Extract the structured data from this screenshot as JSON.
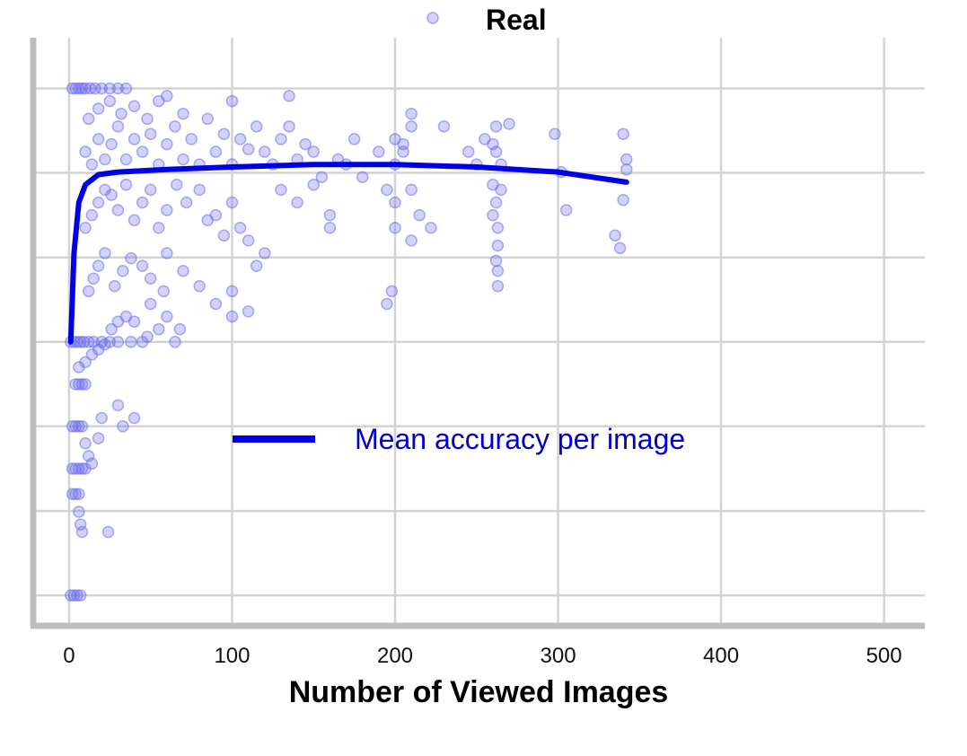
{
  "colors": {
    "points": "#6b6bef",
    "mean_line": "#0000e6",
    "grid": "#d3d3d3",
    "axis": "#bdbdbd",
    "annotation_text": "#0000cc"
  },
  "chart_data": {
    "type": "scatter",
    "title": "",
    "xlabel": "Number of Viewed Images",
    "ylabel": "",
    "xlim": [
      -22,
      525
    ],
    "ylim": [
      -0.12,
      2.2
    ],
    "x_ticks": [
      0,
      100,
      200,
      300,
      400,
      500
    ],
    "y_ticks": [
      0,
      0.333,
      0.667,
      1.0,
      1.333,
      1.667,
      2.0
    ],
    "grid": true,
    "legend": {
      "placement": "top-center",
      "entries": [
        {
          "label": "Real",
          "marker": "circle"
        }
      ]
    },
    "annotation": {
      "text": "Mean accuracy per image",
      "position": "center"
    },
    "series": [
      {
        "name": "Real",
        "type": "scatter",
        "points": [
          [
            2,
            2.0
          ],
          [
            4,
            2.0
          ],
          [
            6,
            2.0
          ],
          [
            8,
            2.0
          ],
          [
            10,
            2.0
          ],
          [
            13,
            2.0
          ],
          [
            16,
            2.0
          ],
          [
            20,
            2.0
          ],
          [
            25,
            2.0
          ],
          [
            30,
            2.0
          ],
          [
            35,
            2.0
          ],
          [
            1,
            1.0
          ],
          [
            3,
            1.0
          ],
          [
            5,
            1.0
          ],
          [
            7,
            1.0
          ],
          [
            9,
            1.0
          ],
          [
            12,
            1.0
          ],
          [
            15,
            1.0
          ],
          [
            20,
            1.0
          ],
          [
            25,
            1.0
          ],
          [
            30,
            1.0
          ],
          [
            38,
            1.0
          ],
          [
            45,
            1.0
          ],
          [
            1,
            0.0
          ],
          [
            3,
            0.0
          ],
          [
            5,
            0.0
          ],
          [
            7,
            0.0
          ],
          [
            2,
            0.667
          ],
          [
            4,
            0.667
          ],
          [
            6,
            0.667
          ],
          [
            8,
            0.667
          ],
          [
            2,
            0.5
          ],
          [
            4,
            0.5
          ],
          [
            6,
            0.5
          ],
          [
            8,
            0.5
          ],
          [
            10,
            0.5
          ],
          [
            2,
            0.4
          ],
          [
            4,
            0.4
          ],
          [
            6,
            0.4
          ],
          [
            4,
            0.833
          ],
          [
            6,
            0.833
          ],
          [
            8,
            0.833
          ],
          [
            10,
            0.833
          ],
          [
            6,
            0.33
          ],
          [
            7,
            0.28
          ],
          [
            8,
            0.25
          ],
          [
            24,
            0.25
          ],
          [
            10,
            0.6
          ],
          [
            12,
            0.55
          ],
          [
            14,
            0.52
          ],
          [
            18,
            0.62
          ],
          [
            20,
            0.7
          ],
          [
            30,
            0.75
          ],
          [
            40,
            0.7
          ],
          [
            33,
            0.667
          ],
          [
            6,
            0.9
          ],
          [
            10,
            0.92
          ],
          [
            14,
            0.95
          ],
          [
            18,
            0.97
          ],
          [
            22,
            0.99
          ],
          [
            26,
            1.05
          ],
          [
            30,
            1.08
          ],
          [
            35,
            1.1
          ],
          [
            40,
            1.08
          ],
          [
            50,
            1.15
          ],
          [
            48,
            1.02
          ],
          [
            55,
            1.05
          ],
          [
            60,
            1.1
          ],
          [
            65,
            1.0
          ],
          [
            68,
            1.05
          ],
          [
            12,
            1.2
          ],
          [
            15,
            1.25
          ],
          [
            18,
            1.3
          ],
          [
            22,
            1.35
          ],
          [
            28,
            1.22
          ],
          [
            33,
            1.28
          ],
          [
            38,
            1.33
          ],
          [
            45,
            1.3
          ],
          [
            50,
            1.25
          ],
          [
            58,
            1.2
          ],
          [
            60,
            1.35
          ],
          [
            70,
            1.28
          ],
          [
            80,
            1.22
          ],
          [
            90,
            1.15
          ],
          [
            100,
            1.2
          ],
          [
            110,
            1.12
          ],
          [
            100,
            1.1
          ],
          [
            115,
            1.3
          ],
          [
            10,
            1.45
          ],
          [
            14,
            1.5
          ],
          [
            18,
            1.55
          ],
          [
            22,
            1.6
          ],
          [
            26,
            1.58
          ],
          [
            30,
            1.52
          ],
          [
            35,
            1.62
          ],
          [
            40,
            1.48
          ],
          [
            45,
            1.55
          ],
          [
            50,
            1.6
          ],
          [
            55,
            1.45
          ],
          [
            60,
            1.52
          ],
          [
            66,
            1.62
          ],
          [
            72,
            1.55
          ],
          [
            80,
            1.6
          ],
          [
            85,
            1.48
          ],
          [
            90,
            1.5
          ],
          [
            95,
            1.42
          ],
          [
            100,
            1.55
          ],
          [
            105,
            1.45
          ],
          [
            110,
            1.4
          ],
          [
            120,
            1.35
          ],
          [
            10,
            1.75
          ],
          [
            14,
            1.7
          ],
          [
            18,
            1.8
          ],
          [
            22,
            1.72
          ],
          [
            26,
            1.78
          ],
          [
            30,
            1.85
          ],
          [
            35,
            1.72
          ],
          [
            40,
            1.8
          ],
          [
            45,
            1.75
          ],
          [
            50,
            1.82
          ],
          [
            55,
            1.7
          ],
          [
            60,
            1.78
          ],
          [
            65,
            1.85
          ],
          [
            70,
            1.72
          ],
          [
            75,
            1.8
          ],
          [
            80,
            1.7
          ],
          [
            85,
            1.88
          ],
          [
            90,
            1.75
          ],
          [
            95,
            1.82
          ],
          [
            100,
            1.7
          ],
          [
            105,
            1.8
          ],
          [
            110,
            1.76
          ],
          [
            115,
            1.85
          ],
          [
            120,
            1.75
          ],
          [
            130,
            1.8
          ],
          [
            140,
            1.72
          ],
          [
            12,
            1.88
          ],
          [
            18,
            1.92
          ],
          [
            25,
            1.95
          ],
          [
            32,
            1.9
          ],
          [
            40,
            1.93
          ],
          [
            48,
            1.88
          ],
          [
            55,
            1.95
          ],
          [
            60,
            1.97
          ],
          [
            70,
            1.9
          ],
          [
            100,
            1.95
          ],
          [
            135,
            1.97
          ],
          [
            130,
            1.6
          ],
          [
            140,
            1.55
          ],
          [
            150,
            1.75
          ],
          [
            155,
            1.65
          ],
          [
            160,
            1.5
          ],
          [
            170,
            1.7
          ],
          [
            175,
            1.8
          ],
          [
            180,
            1.65
          ],
          [
            190,
            1.75
          ],
          [
            195,
            1.6
          ],
          [
            200,
            1.55
          ],
          [
            125,
            1.7
          ],
          [
            135,
            1.85
          ],
          [
            145,
            1.78
          ],
          [
            150,
            1.62
          ],
          [
            160,
            1.45
          ],
          [
            165,
            1.72
          ],
          [
            200,
            1.8
          ],
          [
            200,
            1.7
          ],
          [
            205,
            1.75
          ],
          [
            210,
            1.85
          ],
          [
            210,
            1.9
          ],
          [
            205,
            1.78
          ],
          [
            210,
            1.6
          ],
          [
            200,
            1.45
          ],
          [
            210,
            1.4
          ],
          [
            198,
            1.2
          ],
          [
            195,
            1.15
          ],
          [
            215,
            1.5
          ],
          [
            222,
            1.45
          ],
          [
            230,
            1.85
          ],
          [
            245,
            1.75
          ],
          [
            250,
            1.7
          ],
          [
            255,
            1.8
          ],
          [
            260,
            1.78
          ],
          [
            262,
            1.75
          ],
          [
            260,
            1.62
          ],
          [
            262,
            1.55
          ],
          [
            263,
            1.45
          ],
          [
            263,
            1.38
          ],
          [
            262,
            1.32
          ],
          [
            263,
            1.28
          ],
          [
            263,
            1.22
          ],
          [
            265,
            1.7
          ],
          [
            270,
            1.86
          ],
          [
            298,
            1.82
          ],
          [
            302,
            1.67
          ],
          [
            305,
            1.52
          ],
          [
            335,
            1.42
          ],
          [
            340,
            1.56
          ],
          [
            342,
            1.68
          ],
          [
            340,
            1.82
          ],
          [
            342,
            1.72
          ],
          [
            338,
            1.37
          ],
          [
            262,
            1.85
          ],
          [
            265,
            1.6
          ],
          [
            260,
            1.5
          ]
        ]
      }
    ],
    "mean_line": {
      "label": "Mean accuracy per image",
      "x": [
        1,
        3,
        6,
        10,
        18,
        30,
        60,
        100,
        150,
        200,
        250,
        300,
        342
      ],
      "y": [
        1.0,
        1.35,
        1.55,
        1.62,
        1.66,
        1.67,
        1.68,
        1.69,
        1.7,
        1.7,
        1.69,
        1.67,
        1.63
      ]
    }
  }
}
